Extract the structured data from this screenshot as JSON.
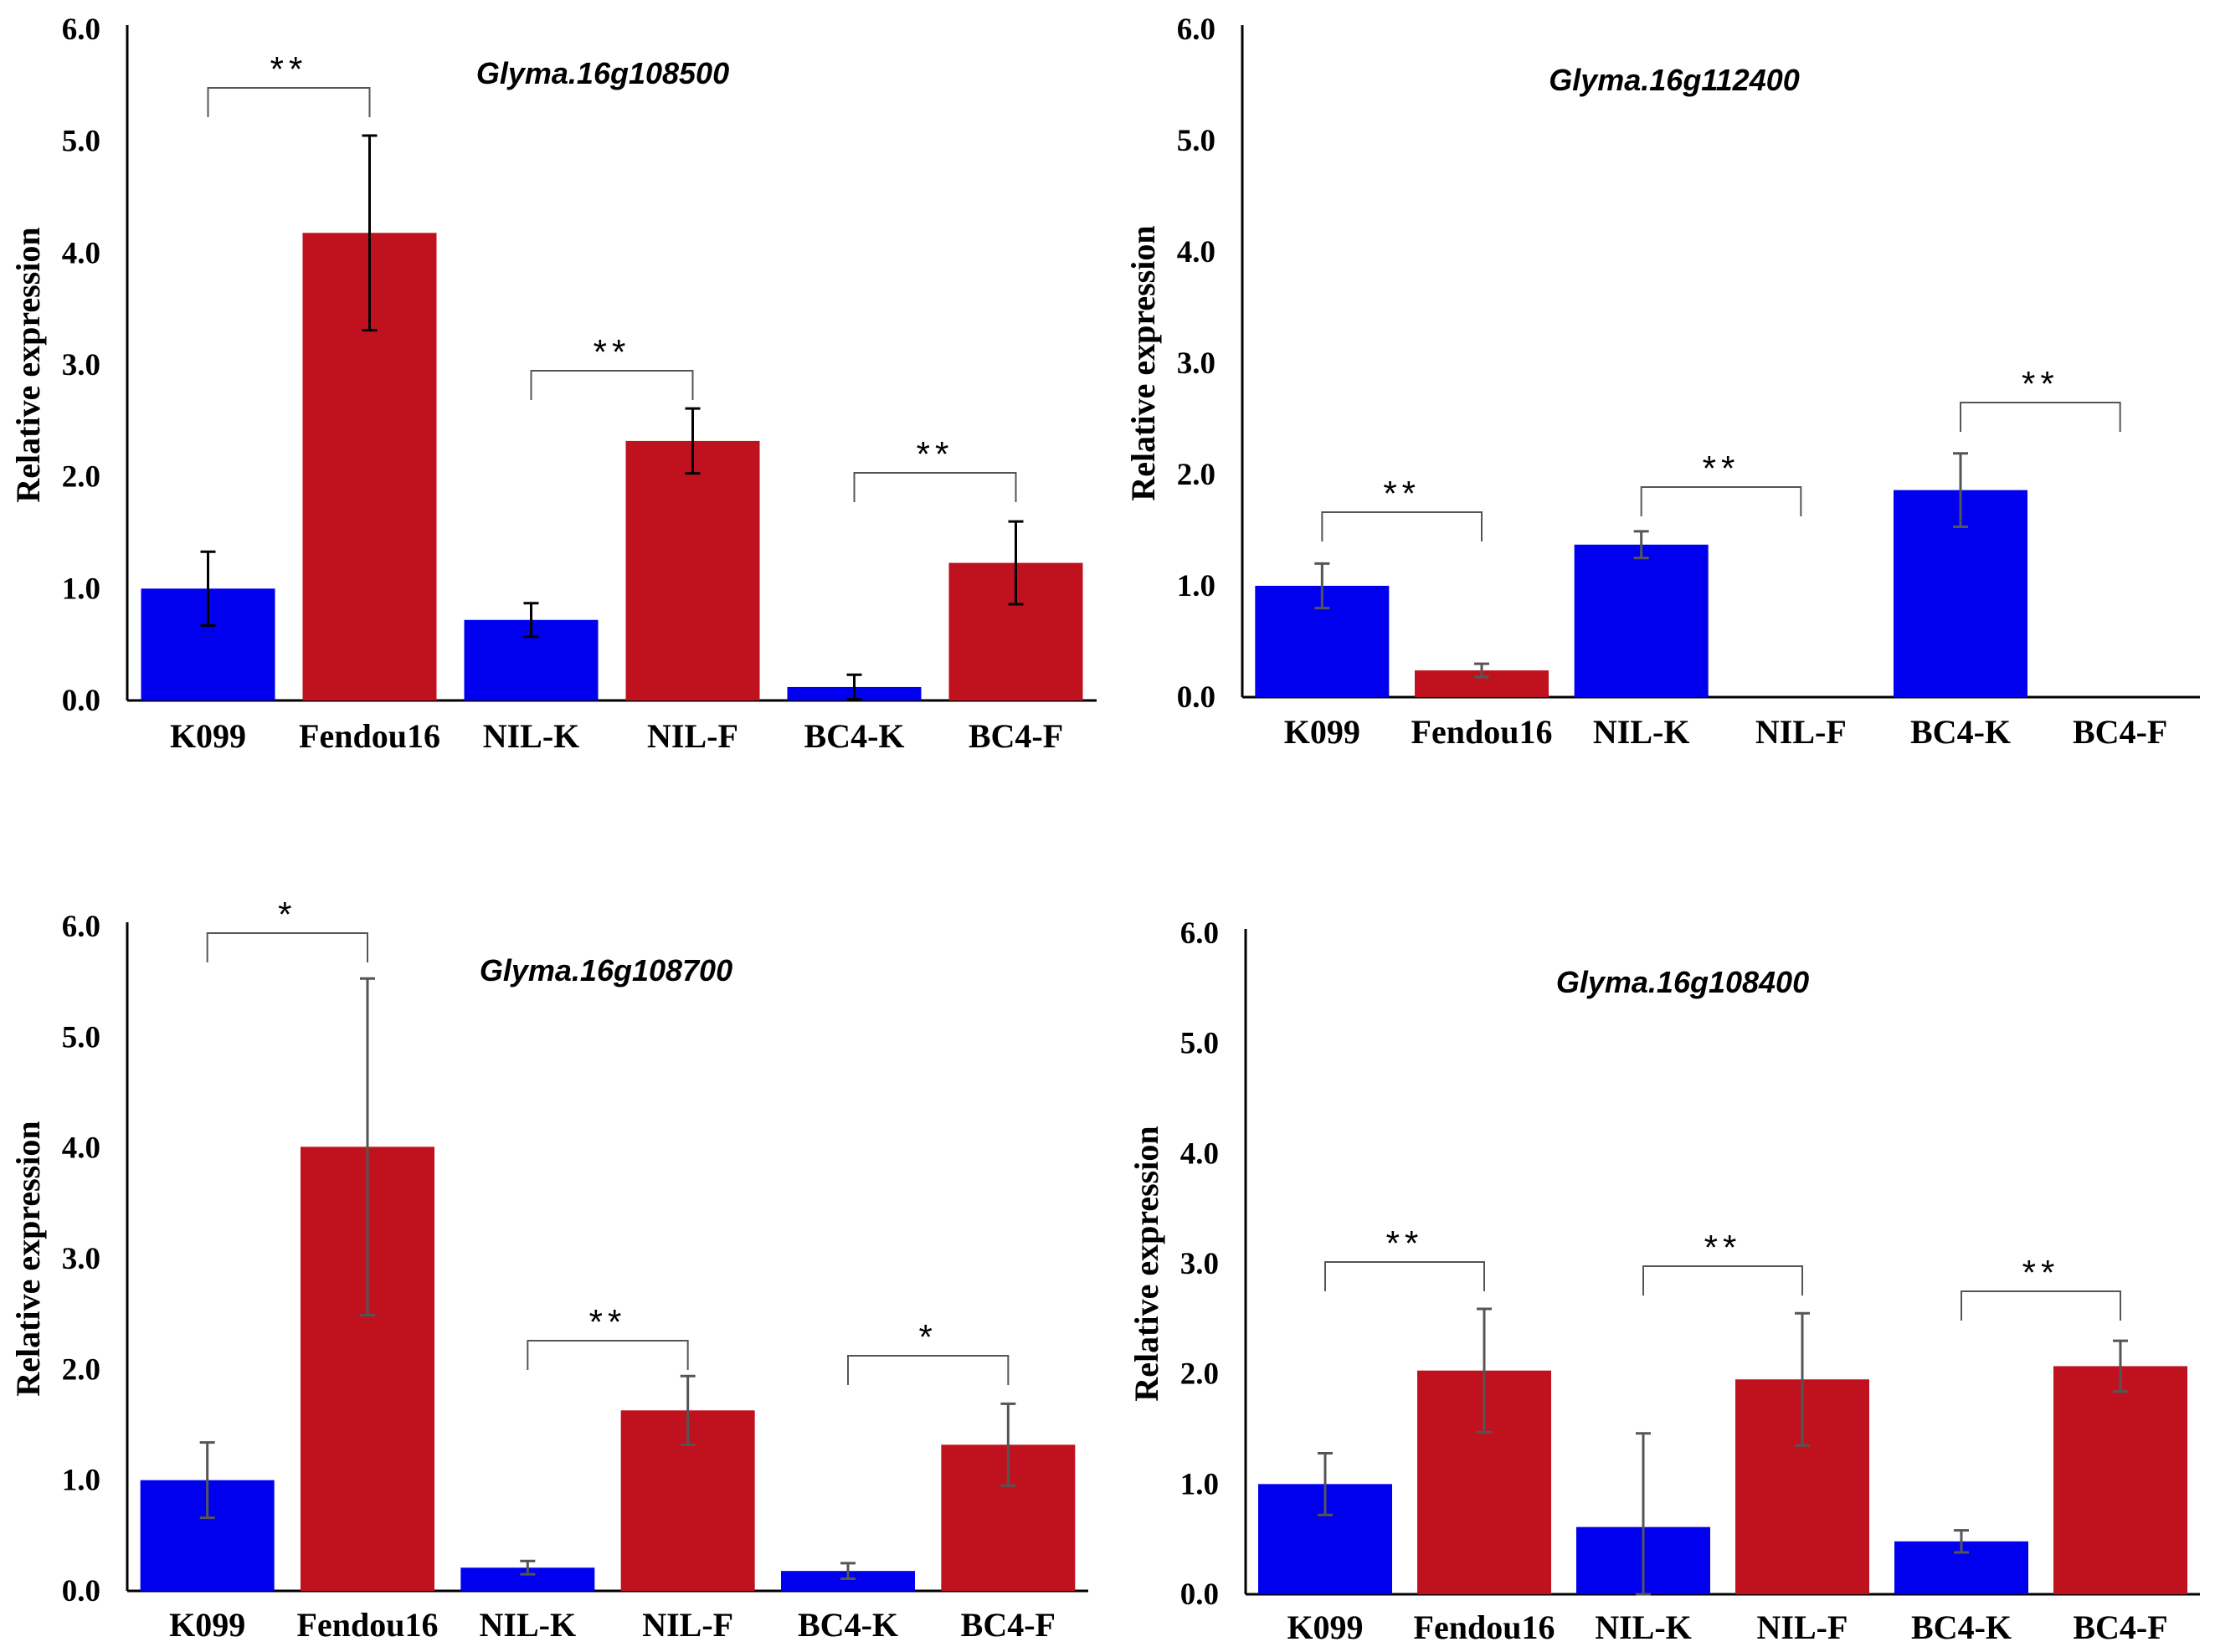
{
  "chart_data": [
    {
      "type": "bar",
      "title": "Glyma.16g108500",
      "ylabel": "Relative expression",
      "xlabel": "",
      "ylim": [
        0,
        6
      ],
      "yticks": [
        "0.0",
        "1.0",
        "2.0",
        "3.0",
        "4.0",
        "5.0",
        "6.0"
      ],
      "categories": [
        "K099",
        "Fendou16",
        "NIL-K",
        "NIL-F",
        "BC4-K",
        "BC4-F"
      ],
      "values": [
        1.0,
        4.18,
        0.72,
        2.32,
        0.12,
        1.23
      ],
      "errors": [
        0.33,
        0.87,
        0.15,
        0.29,
        0.11,
        0.37
      ],
      "colors": [
        "#0000ee",
        "#c0111f",
        "#0000ee",
        "#c0111f",
        "#0000ee",
        "#c0111f"
      ],
      "error_color": "#000000",
      "significance": [
        {
          "from": 0,
          "to": 1,
          "label": "**"
        },
        {
          "from": 2,
          "to": 3,
          "label": "**"
        },
        {
          "from": 4,
          "to": 5,
          "label": "**"
        }
      ]
    },
    {
      "type": "bar",
      "title": "Glyma.16g112400",
      "ylabel": "Relative expression",
      "xlabel": "",
      "ylim": [
        0,
        6
      ],
      "yticks": [
        "0.0",
        "1.0",
        "2.0",
        "3.0",
        "4.0",
        "5.0",
        "6.0"
      ],
      "categories": [
        "K099",
        "Fendou16",
        "NIL-K",
        "NIL-F",
        "BC4-K",
        "BC4-F"
      ],
      "values": [
        1.0,
        0.24,
        1.37,
        0,
        1.86,
        0
      ],
      "errors": [
        0.2,
        0.06,
        0.12,
        0,
        0.33,
        0
      ],
      "colors": [
        "#0000ee",
        "#c0111f",
        "#0000ee",
        "#c0111f",
        "#0000ee",
        "#c0111f"
      ],
      "error_color": "#555555",
      "significance": [
        {
          "from": 0,
          "to": 1,
          "label": "**"
        },
        {
          "from": 2,
          "to": 3,
          "label": "**"
        },
        {
          "from": 4,
          "to": 5,
          "label": "**"
        }
      ]
    },
    {
      "type": "bar",
      "title": "Glyma.16g108700",
      "ylabel": "Relative expression",
      "xlabel": "",
      "ylim": [
        0,
        6
      ],
      "yticks": [
        "0.0",
        "1.0",
        "2.0",
        "3.0",
        "4.0",
        "5.0",
        "6.0"
      ],
      "categories": [
        "K099",
        "Fendou16",
        "NIL-K",
        "NIL-F",
        "BC4-K",
        "BC4-F"
      ],
      "values": [
        1.0,
        4.01,
        0.21,
        1.63,
        0.18,
        1.32
      ],
      "errors": [
        0.34,
        1.52,
        0.06,
        0.31,
        0.07,
        0.37
      ],
      "colors": [
        "#0000ee",
        "#c0111f",
        "#0000ee",
        "#c0111f",
        "#0000ee",
        "#c0111f"
      ],
      "error_color": "#555555",
      "significance": [
        {
          "from": 0,
          "to": 1,
          "label": "*"
        },
        {
          "from": 2,
          "to": 3,
          "label": "**"
        },
        {
          "from": 4,
          "to": 5,
          "label": "*"
        }
      ]
    },
    {
      "type": "bar",
      "title": "Glyma.16g108400",
      "ylabel": "Relative expression",
      "xlabel": "",
      "ylim": [
        0,
        6
      ],
      "yticks": [
        "0.0",
        "1.0",
        "2.0",
        "3.0",
        "4.0",
        "5.0",
        "6.0"
      ],
      "categories": [
        "K099",
        "Fendou16",
        "NIL-K",
        "NIL-F",
        "BC4-K",
        "BC4-F"
      ],
      "values": [
        1.0,
        2.03,
        0.61,
        1.95,
        0.48,
        2.07
      ],
      "errors": [
        0.28,
        0.56,
        0.85,
        0.6,
        0.1,
        0.23
      ],
      "colors": [
        "#0000ee",
        "#c0111f",
        "#0000ee",
        "#c0111f",
        "#0000ee",
        "#c0111f"
      ],
      "error_color": "#555555",
      "significance": [
        {
          "from": 0,
          "to": 1,
          "label": "**"
        },
        {
          "from": 2,
          "to": 3,
          "label": "**"
        },
        {
          "from": 4,
          "to": 5,
          "label": "**"
        }
      ]
    }
  ]
}
